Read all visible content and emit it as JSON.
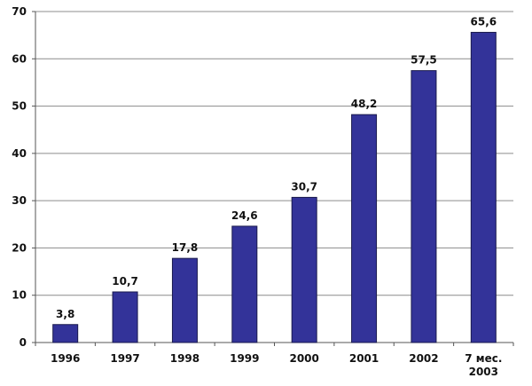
{
  "chart_data": {
    "type": "bar",
    "categories": [
      "1996",
      "1997",
      "1998",
      "1999",
      "2000",
      "2001",
      "2002",
      "7 мес.\n2003"
    ],
    "values": [
      3.8,
      10.7,
      17.8,
      24.6,
      30.7,
      48.2,
      57.5,
      65.6
    ],
    "data_labels": [
      "3,8",
      "10,7",
      "17,8",
      "24,6",
      "30,7",
      "48,2",
      "57,5",
      "65,6"
    ],
    "y_ticks": [
      "0",
      "10",
      "20",
      "30",
      "40",
      "50",
      "60",
      "70"
    ],
    "ylim": [
      0,
      70
    ],
    "title": "",
    "xlabel": "",
    "ylabel": "",
    "grid": true,
    "legend": "none",
    "bar_color": "#333399"
  }
}
